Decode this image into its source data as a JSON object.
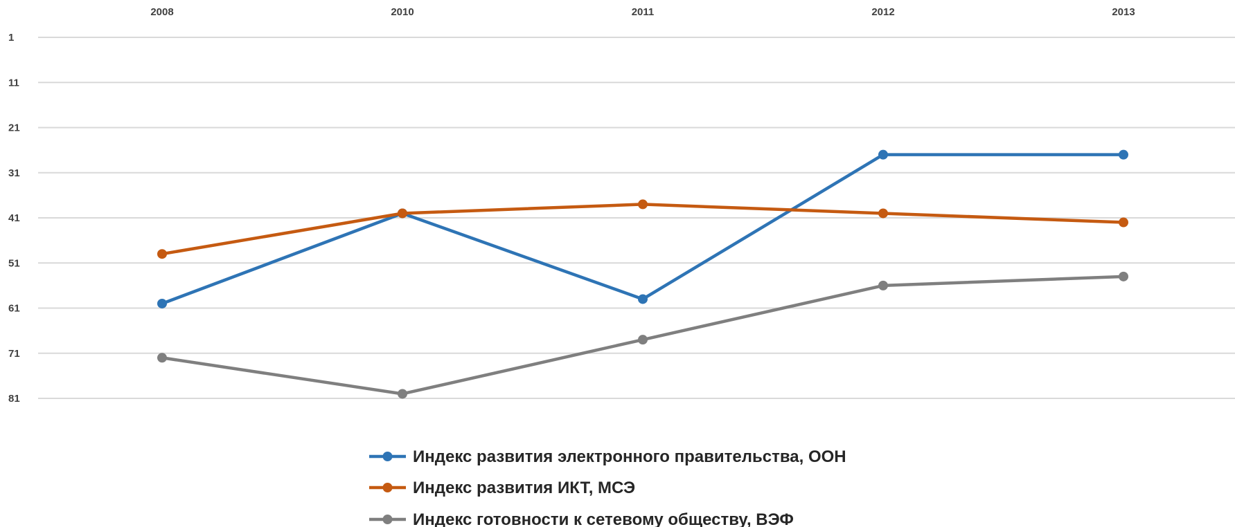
{
  "chart_data": {
    "type": "line",
    "title": "",
    "xlabel": "",
    "ylabel": "",
    "categories": [
      "2008",
      "2010",
      "2011",
      "2012",
      "2013"
    ],
    "y_ticks": [
      1,
      11,
      21,
      31,
      41,
      51,
      61,
      71,
      81
    ],
    "ylim": [
      1,
      81
    ],
    "y_axis_reversed": true,
    "x_axis_position": "top",
    "grid": true,
    "legend_position": "bottom",
    "series": [
      {
        "name": "Индекс развития электронного правительства, ООН",
        "color": "#2e74b5",
        "values": [
          60,
          40,
          59,
          27,
          27
        ]
      },
      {
        "name": "Индекс развития ИКТ, МСЭ",
        "color": "#c55a11",
        "values": [
          49,
          40,
          38,
          40,
          42
        ]
      },
      {
        "name": "Индекс готовности к сетевому обществу, ВЭФ",
        "color": "#7f7f7f",
        "values": [
          72,
          80,
          68,
          56,
          54
        ]
      }
    ]
  }
}
